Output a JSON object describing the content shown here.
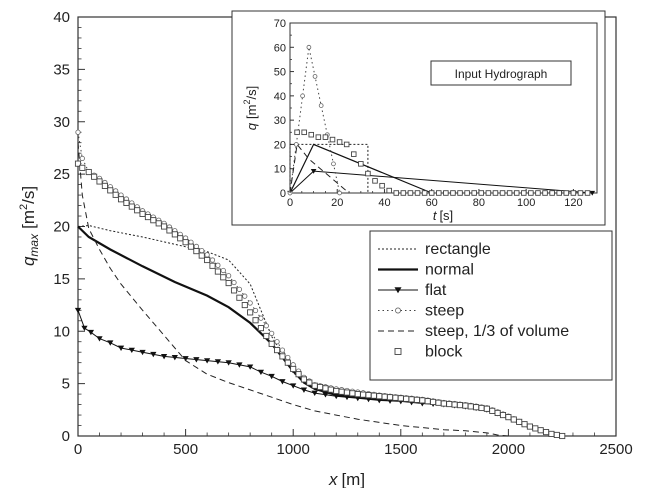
{
  "chart_data": [
    {
      "type": "line",
      "title": "",
      "xlabel_var": "x",
      "xlabel_unit": "[m]",
      "ylabel_var": "q",
      "ylabel_sub": "max",
      "ylabel_unit": "[m",
      "ylabel_sup": "2",
      "ylabel_unit_end": "/s]",
      "xlim": [
        0,
        2500
      ],
      "ylim": [
        0,
        40
      ],
      "xticks": [
        "0",
        "500",
        "1000",
        "1500",
        "2000",
        "2500"
      ],
      "yticks": [
        "0",
        "5",
        "10",
        "15",
        "20",
        "25",
        "30",
        "35",
        "40"
      ],
      "legend_position": "right-middle",
      "series": [
        {
          "name": "rectangle",
          "style": "dotted-fine",
          "marker": "none",
          "x": [
            0,
            50,
            150,
            300,
            450,
            600,
            700,
            800,
            900,
            1000,
            1100,
            1200,
            1300,
            1400,
            1500,
            1600,
            1700,
            1800,
            1900,
            2000,
            2100,
            2200,
            2250
          ],
          "y": [
            20,
            20.1,
            19.6,
            19,
            18.3,
            17.6,
            16.8,
            14.5,
            9.5,
            6.0,
            4.8,
            4.4,
            4.1,
            3.8,
            3.6,
            3.4,
            3.1,
            2.9,
            2.6,
            1.8,
            0.9,
            0.2,
            0
          ]
        },
        {
          "name": "normal",
          "style": "solid-thick",
          "marker": "none",
          "x": [
            0,
            50,
            150,
            300,
            450,
            600,
            700,
            800,
            900,
            950,
            1000,
            1050,
            1100,
            1200,
            1300,
            1400,
            1500,
            1600,
            1700,
            1800,
            1900,
            2000,
            2100,
            2200,
            2250
          ],
          "y": [
            20,
            19,
            17.8,
            16.2,
            14.7,
            13.4,
            12.3,
            10.8,
            8.8,
            7.5,
            6.2,
            5.1,
            4.5,
            3.9,
            3.7,
            3.5,
            3.4,
            3.2,
            3.0,
            2.8,
            2.5,
            1.7,
            0.8,
            0.1,
            0
          ]
        },
        {
          "name": "flat",
          "style": "solid-thin",
          "marker": "triangle-down",
          "x": [
            0,
            30,
            60,
            100,
            150,
            200,
            300,
            400,
            500,
            600,
            700,
            800,
            850,
            900,
            950,
            1000,
            1050,
            1100,
            1200,
            1300,
            1400,
            1500,
            1600,
            1700,
            1800,
            1900,
            2000,
            2100,
            2200,
            2250
          ],
          "y": [
            12,
            10.3,
            9.9,
            9.3,
            8.9,
            8.4,
            8.0,
            7.6,
            7.4,
            7.2,
            7.0,
            6.6,
            6.1,
            5.7,
            5.2,
            4.8,
            4.4,
            4.1,
            3.8,
            3.6,
            3.4,
            3.3,
            3.1,
            3.0,
            2.8,
            2.5,
            1.8,
            0.9,
            0.2,
            0
          ]
        },
        {
          "name": "steep",
          "style": "dotted",
          "marker": "circle",
          "x": [
            0,
            20,
            50,
            100,
            200,
            300,
            400,
            500,
            600,
            700,
            800,
            900,
            950,
            1000,
            1050,
            1100,
            1200,
            1300,
            1400,
            1500,
            1600,
            1700,
            1800,
            1900,
            2000,
            2100,
            2200,
            2250
          ],
          "y": [
            29,
            26.5,
            25.2,
            24.6,
            23,
            21.5,
            20.3,
            18.9,
            17.3,
            15.3,
            12.7,
            9.8,
            8.2,
            6.8,
            5.6,
            4.9,
            4.5,
            4.2,
            3.9,
            3.7,
            3.5,
            3.2,
            3.0,
            2.7,
            1.9,
            0.9,
            0.2,
            0
          ]
        },
        {
          "name": "steep, 1/3 of volume",
          "style": "dashed",
          "marker": "none",
          "x": [
            0,
            20,
            50,
            100,
            150,
            200,
            300,
            400,
            500,
            600,
            700,
            800,
            900,
            1000,
            1100,
            1200,
            1300,
            1400,
            1500,
            1600,
            1700,
            1800,
            1900,
            1950,
            2000
          ],
          "y": [
            28,
            23,
            19.8,
            17.8,
            16.0,
            14.5,
            12.0,
            9.6,
            7.2,
            5.9,
            5.1,
            4.4,
            3.7,
            3.0,
            2.4,
            2.0,
            1.6,
            1.3,
            1.0,
            0.8,
            0.6,
            0.5,
            0.3,
            0.1,
            0
          ]
        },
        {
          "name": "block",
          "style": "none",
          "marker": "square",
          "x": [
            0,
            20,
            50,
            100,
            200,
            300,
            400,
            500,
            600,
            700,
            800,
            900,
            950,
            1000,
            1050,
            1100,
            1200,
            1300,
            1400,
            1500,
            1600,
            1700,
            1800,
            1900,
            2000,
            2100,
            2200,
            2250
          ],
          "y": [
            26,
            25.6,
            25.2,
            24.3,
            22.6,
            21.2,
            20.0,
            18.5,
            16.8,
            14.6,
            11.8,
            8.8,
            7.6,
            6.4,
            5.4,
            4.8,
            4.3,
            4.0,
            3.8,
            3.6,
            3.4,
            3.1,
            2.9,
            2.6,
            1.8,
            0.9,
            0.2,
            0
          ]
        }
      ]
    },
    {
      "type": "line",
      "title": "Input Hydrograph",
      "xlabel_var": "t",
      "xlabel_unit": "[s]",
      "ylabel_var": "q",
      "ylabel_unit": "[m",
      "ylabel_sup": "2",
      "ylabel_unit_end": "/s]",
      "xlim": [
        0,
        130
      ],
      "ylim": [
        0,
        70
      ],
      "xticks": [
        "0",
        "20",
        "40",
        "60",
        "80",
        "100",
        "120"
      ],
      "yticks": [
        "0",
        "10",
        "20",
        "30",
        "40",
        "50",
        "60",
        "70"
      ],
      "series": [
        {
          "name": "rectangle",
          "style": "dotted-fine",
          "marker": "none",
          "x": [
            0,
            0,
            33,
            33
          ],
          "y": [
            0,
            20,
            20,
            0
          ]
        },
        {
          "name": "normal",
          "style": "solid",
          "marker": "none",
          "x": [
            0,
            10,
            60
          ],
          "y": [
            0,
            20,
            0
          ]
        },
        {
          "name": "flat",
          "style": "solid-thin",
          "marker": "triangle-down",
          "x": [
            0,
            10,
            128
          ],
          "y": [
            0,
            9,
            0
          ]
        },
        {
          "name": "steep",
          "style": "dotted",
          "marker": "circle",
          "x": [
            0,
            8,
            21
          ],
          "y": [
            0,
            60,
            0
          ]
        },
        {
          "name": "steep, 1/3 of volume",
          "style": "dashed",
          "marker": "none",
          "x": [
            0,
            3,
            8,
            25
          ],
          "y": [
            0,
            20,
            14,
            0
          ]
        },
        {
          "name": "block",
          "style": "none",
          "marker": "square",
          "x": [
            3,
            6,
            9,
            12,
            15,
            18,
            21,
            24,
            27,
            30,
            33,
            36,
            39,
            42,
            45,
            48,
            51,
            54,
            57,
            60,
            63,
            66,
            69,
            72,
            75,
            78,
            81,
            84,
            87,
            90,
            93,
            96,
            99,
            102,
            105,
            108,
            111,
            114,
            117,
            120,
            123,
            126
          ],
          "y": [
            25,
            25,
            24,
            23,
            23,
            22,
            21,
            20,
            16,
            12,
            8,
            5,
            3,
            1,
            0,
            0,
            0,
            0,
            0,
            0,
            0,
            0,
            0,
            0,
            0,
            0,
            0,
            0,
            0,
            0,
            0,
            0,
            0,
            0,
            0,
            0,
            0,
            0,
            0,
            0,
            0,
            0
          ]
        }
      ]
    }
  ]
}
